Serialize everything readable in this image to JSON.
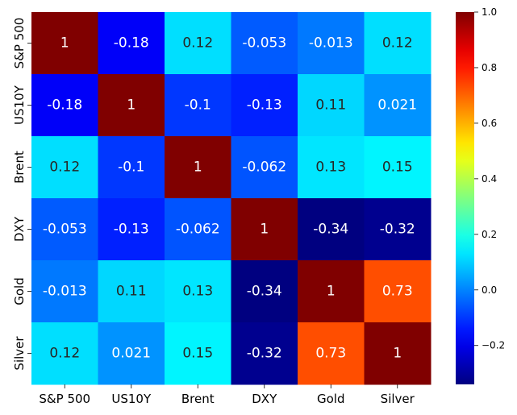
{
  "chart_data": {
    "type": "heatmap",
    "title": "",
    "xlabel": "",
    "ylabel": "",
    "x_categories": [
      "S&P 500",
      "US10Y",
      "Brent",
      "DXY",
      "Gold",
      "Silver"
    ],
    "y_categories": [
      "S&P 500",
      "US10Y",
      "Brent",
      "DXY",
      "Gold",
      "Silver"
    ],
    "values": [
      [
        1,
        -0.18,
        0.12,
        -0.053,
        -0.013,
        0.12
      ],
      [
        -0.18,
        1,
        -0.1,
        -0.13,
        0.11,
        0.021
      ],
      [
        0.12,
        -0.1,
        1,
        -0.062,
        0.13,
        0.15
      ],
      [
        -0.053,
        -0.13,
        -0.062,
        1,
        -0.34,
        -0.32
      ],
      [
        -0.013,
        0.11,
        0.13,
        -0.34,
        1,
        0.73
      ],
      [
        0.12,
        0.021,
        0.15,
        -0.32,
        0.73,
        1
      ]
    ],
    "cell_labels": [
      [
        "1",
        "-0.18",
        "0.12",
        "-0.053",
        "-0.013",
        "0.12"
      ],
      [
        "-0.18",
        "1",
        "-0.1",
        "-0.13",
        "0.11",
        "0.021"
      ],
      [
        "0.12",
        "-0.1",
        "1",
        "-0.062",
        "0.13",
        "0.15"
      ],
      [
        "-0.053",
        "-0.13",
        "-0.062",
        "1",
        "-0.34",
        "-0.32"
      ],
      [
        "-0.013",
        "0.11",
        "0.13",
        "-0.34",
        "1",
        "0.73"
      ],
      [
        "0.12",
        "0.021",
        "0.15",
        "-0.32",
        "0.73",
        "1"
      ]
    ],
    "colormap": "jet",
    "vmin": -0.34,
    "vmax": 1.0,
    "colorbar_ticks": [
      {
        "value": 1.0,
        "label": "1.0"
      },
      {
        "value": 0.8,
        "label": "0.8"
      },
      {
        "value": 0.6,
        "label": "0.6"
      },
      {
        "value": 0.4,
        "label": "0.4"
      },
      {
        "value": 0.2,
        "label": "0.2"
      },
      {
        "value": 0.0,
        "label": "0.0"
      },
      {
        "value": -0.2,
        "label": "−0.2"
      }
    ]
  }
}
